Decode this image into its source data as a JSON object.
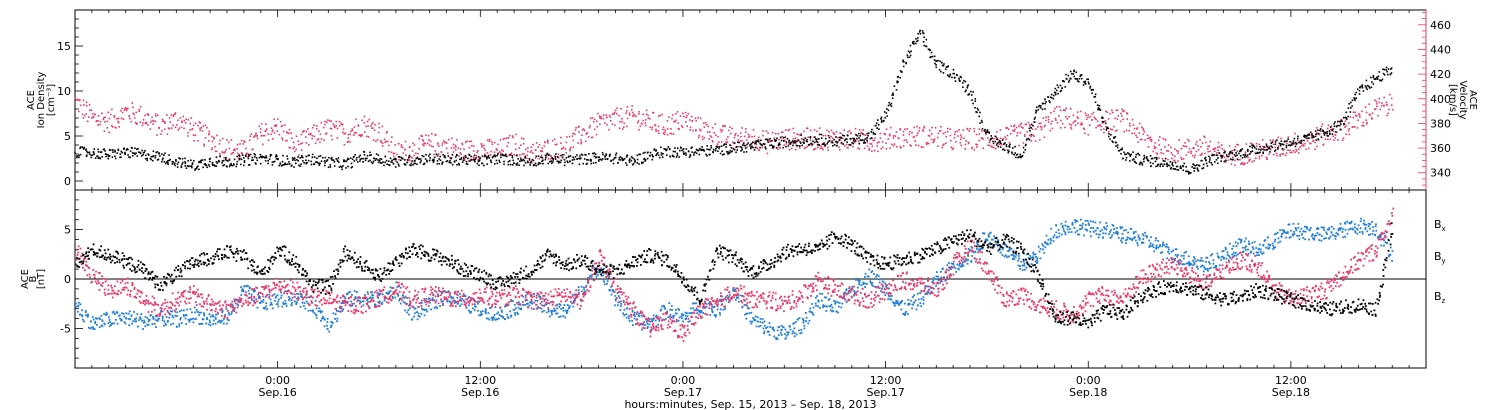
{
  "chart_data": [
    {
      "type": "scatter",
      "panel": "top",
      "ylabel_lines": [
        "ACE",
        "Ion Density",
        "[cm⁻³]"
      ],
      "ylim": [
        -1,
        19
      ],
      "yticks": [
        0,
        5,
        10,
        15
      ],
      "y2label_lines": [
        "ACE",
        "Velocity",
        "[km/s]"
      ],
      "y2lim": [
        326,
        472
      ],
      "y2ticks": [
        340,
        360,
        380,
        400,
        420,
        440,
        460
      ],
      "y2_color": "#e8396a",
      "series": [
        {
          "axis": "left",
          "color": "#000000",
          "x": [
            0,
            1,
            2,
            3,
            4,
            5,
            6,
            7,
            8,
            9,
            10,
            11,
            12,
            13,
            14,
            15,
            16,
            17,
            18,
            19,
            20,
            21,
            22,
            23,
            24,
            25,
            26,
            27,
            28,
            29,
            30,
            31,
            32,
            33,
            34,
            35,
            36,
            37,
            38,
            39,
            40,
            41,
            42,
            43,
            44,
            45,
            46,
            47,
            48,
            49,
            50,
            51,
            52,
            53,
            54,
            55,
            56,
            57,
            58,
            59,
            60,
            61,
            62,
            63,
            64,
            65,
            66,
            67,
            68,
            69,
            70,
            71,
            72,
            73,
            74,
            75,
            76,
            77,
            78
          ],
          "y": [
            3.3,
            3.2,
            3.0,
            3.3,
            3.0,
            2.8,
            2.2,
            1.8,
            2.3,
            2.2,
            2.4,
            2.6,
            2.4,
            2.2,
            2.5,
            2.2,
            1.9,
            2.8,
            2.5,
            2.2,
            2.4,
            2.6,
            2.4,
            2.5,
            2.3,
            2.6,
            2.4,
            2.3,
            2.6,
            2.4,
            2.5,
            2.7,
            2.6,
            2.3,
            3.0,
            3.4,
            3.3,
            3.4,
            3.5,
            3.8,
            3.9,
            4.2,
            4.4,
            4.6,
            4.7,
            4.5,
            4.7,
            5.0,
            7.5,
            13.0,
            16.5,
            13.0,
            12.0,
            10.0,
            5.0,
            4.0,
            3.0,
            8.0,
            10.0,
            12.0,
            11.0,
            6.0,
            3.0,
            2.5,
            2.2,
            2.0,
            1.3,
            2.3,
            2.8,
            3.2,
            3.6,
            4.0,
            4.4,
            4.8,
            5.5,
            6.5,
            10.0,
            11.5,
            12.5
          ],
          "point_size": 1.6
        },
        {
          "axis": "right",
          "color": "#e8396a",
          "x": [
            0,
            1,
            2,
            3,
            4,
            5,
            6,
            7,
            8,
            9,
            10,
            11,
            12,
            13,
            14,
            15,
            16,
            17,
            18,
            19,
            20,
            21,
            22,
            23,
            24,
            25,
            26,
            27,
            28,
            29,
            30,
            31,
            32,
            33,
            34,
            35,
            36,
            37,
            38,
            39,
            40,
            41,
            42,
            43,
            44,
            45,
            46,
            47,
            48,
            49,
            50,
            51,
            52,
            53,
            54,
            55,
            56,
            57,
            58,
            59,
            60,
            61,
            62,
            63,
            64,
            65,
            66,
            67,
            68,
            69,
            70,
            71,
            72,
            73,
            74,
            75,
            76,
            77,
            78
          ],
          "y": [
            398,
            385,
            382,
            390,
            386,
            378,
            384,
            375,
            368,
            360,
            358,
            372,
            378,
            362,
            370,
            376,
            372,
            380,
            374,
            356,
            360,
            364,
            362,
            358,
            360,
            358,
            364,
            356,
            360,
            362,
            372,
            380,
            384,
            386,
            382,
            378,
            384,
            376,
            372,
            368,
            370,
            365,
            368,
            368,
            368,
            368,
            368,
            366,
            368,
            370,
            370,
            370,
            367,
            368,
            368,
            368,
            372,
            374,
            386,
            384,
            380,
            382,
            384,
            372,
            362,
            358,
            360,
            362,
            354,
            356,
            358,
            360,
            364,
            366,
            372,
            376,
            384,
            392,
            396
          ],
          "y_extra": [
            [
              80,
              0,
              436
            ]
          ],
          "point_size": 1.6
        }
      ]
    },
    {
      "type": "scatter",
      "panel": "bottom",
      "ylabel_lines": [
        "ACE",
        "B",
        "[nT]"
      ],
      "ylim": [
        -9,
        9
      ],
      "yticks": [
        -5,
        0,
        5
      ],
      "zero_line": true,
      "series": [
        {
          "name": "B",
          "sub": "x",
          "color": "#000000",
          "x": [
            0,
            1,
            2,
            3,
            4,
            5,
            6,
            7,
            8,
            9,
            10,
            11,
            12,
            13,
            14,
            15,
            16,
            17,
            18,
            19,
            20,
            21,
            22,
            23,
            24,
            25,
            26,
            27,
            28,
            29,
            30,
            31,
            32,
            33,
            34,
            35,
            36,
            37,
            38,
            39,
            40,
            41,
            42,
            43,
            44,
            45,
            46,
            47,
            48,
            49,
            50,
            51,
            52,
            53,
            54,
            55,
            56,
            57,
            58,
            59,
            60,
            61,
            62,
            63,
            64,
            65,
            66,
            67,
            68,
            69,
            70,
            71,
            72,
            73,
            74,
            75,
            76,
            77,
            78
          ],
          "y": [
            1.5,
            3.0,
            2.5,
            1.8,
            1.0,
            -0.5,
            0.6,
            1.8,
            2.2,
            2.8,
            2.3,
            0.5,
            3.1,
            1.8,
            -0.5,
            -0.8,
            2.8,
            1.5,
            0.4,
            1.9,
            3.0,
            2.6,
            2.0,
            1.0,
            0.6,
            -0.5,
            0.2,
            1.0,
            2.5,
            1.5,
            2.0,
            1.0,
            0.8,
            1.8,
            2.5,
            2.0,
            0.2,
            -2.0,
            3.0,
            2.2,
            0.8,
            1.5,
            2.8,
            3.2,
            3.0,
            4.5,
            3.5,
            2.0,
            1.6,
            2.0,
            2.5,
            3.1,
            4.0,
            4.5,
            3.2,
            4.0,
            3.0,
            0.5,
            -4.0,
            -3.8,
            -4.5,
            -3.0,
            -3.5,
            -1.8,
            -1.0,
            -0.5,
            -1.0,
            -1.5,
            -2.0,
            -1.8,
            -1.0,
            -1.5,
            -2.0,
            -2.5,
            -3.0,
            -2.8,
            -2.5,
            -3.0,
            5.5
          ],
          "point_size": 1.8
        },
        {
          "name": "B",
          "sub": "y",
          "color": "#1f7fd8",
          "x": [
            0,
            1,
            2,
            3,
            4,
            5,
            6,
            7,
            8,
            9,
            10,
            11,
            12,
            13,
            14,
            15,
            16,
            17,
            18,
            19,
            20,
            21,
            22,
            23,
            24,
            25,
            26,
            27,
            28,
            29,
            30,
            31,
            32,
            33,
            34,
            35,
            36,
            37,
            38,
            39,
            40,
            41,
            42,
            43,
            44,
            45,
            46,
            47,
            48,
            49,
            50,
            51,
            52,
            53,
            54,
            55,
            56,
            57,
            58,
            59,
            60,
            61,
            62,
            63,
            64,
            65,
            66,
            67,
            68,
            69,
            70,
            71,
            72,
            73,
            74,
            75,
            76,
            77,
            78
          ],
          "y": [
            -2.5,
            -4.5,
            -4.0,
            -3.8,
            -4.2,
            -3.9,
            -4.0,
            -3.5,
            -4.1,
            -3.6,
            -1.0,
            -2.5,
            -2.0,
            -1.8,
            -2.5,
            -4.5,
            -2.0,
            -1.8,
            -2.0,
            -1.0,
            -3.5,
            -2.5,
            -1.5,
            -2.3,
            -3.0,
            -3.5,
            -2.8,
            -2.0,
            -3.0,
            -3.2,
            -1.0,
            1.5,
            -2.0,
            -4.0,
            -4.5,
            -3.0,
            -4.0,
            -2.5,
            -3.0,
            -1.0,
            -4.0,
            -5.0,
            -5.5,
            -4.5,
            -2.0,
            -3.0,
            -1.0,
            0.5,
            -1.0,
            -3.0,
            -2.0,
            0.0,
            1.5,
            2.5,
            4.5,
            3.0,
            1.5,
            2.5,
            5.0,
            5.5,
            5.2,
            5.0,
            4.5,
            4.2,
            3.5,
            2.5,
            2.0,
            1.5,
            2.5,
            3.5,
            3.0,
            4.0,
            5.0,
            4.8,
            4.5,
            5.0,
            5.5,
            5.2,
            2.5
          ],
          "point_size": 1.8
        },
        {
          "name": "B",
          "sub": "z",
          "color": "#e8396a",
          "x": [
            0,
            1,
            2,
            3,
            4,
            5,
            6,
            7,
            8,
            9,
            10,
            11,
            12,
            13,
            14,
            15,
            16,
            17,
            18,
            19,
            20,
            21,
            22,
            23,
            24,
            25,
            26,
            27,
            28,
            29,
            30,
            31,
            32,
            33,
            34,
            35,
            36,
            37,
            38,
            39,
            40,
            41,
            42,
            43,
            44,
            45,
            46,
            47,
            48,
            49,
            50,
            51,
            52,
            53,
            54,
            55,
            56,
            57,
            58,
            59,
            60,
            61,
            62,
            63,
            64,
            65,
            66,
            67,
            68,
            69,
            70,
            71,
            72,
            73,
            74,
            75,
            76,
            77,
            78
          ],
          "y": [
            3.0,
            0.5,
            -1.0,
            -0.5,
            -2.0,
            -3.0,
            -2.0,
            -1.5,
            -2.5,
            -3.0,
            -2.0,
            -1.5,
            -0.5,
            -1.0,
            -1.8,
            -2.0,
            -2.5,
            -2.5,
            -1.8,
            -1.0,
            -2.0,
            -1.5,
            -1.8,
            -2.0,
            -1.5,
            -2.0,
            -1.5,
            -2.0,
            -2.0,
            -1.5,
            -2.2,
            2.5,
            -1.0,
            -3.0,
            -5.0,
            -4.0,
            -5.5,
            -3.0,
            -2.5,
            -1.0,
            -2.0,
            -2.0,
            -2.5,
            -1.5,
            0.0,
            -1.0,
            -1.5,
            -2.0,
            -1.0,
            0.0,
            -0.5,
            -1.0,
            1.5,
            3.5,
            1.0,
            -2.0,
            -1.5,
            -2.5,
            -3.0,
            -3.5,
            -2.0,
            -1.5,
            -2.0,
            0.0,
            1.0,
            1.5,
            0.5,
            -0.5,
            1.0,
            2.0,
            1.5,
            -1.0,
            -2.0,
            -1.5,
            -1.0,
            0.5,
            2.0,
            3.0,
            6.5
          ],
          "point_size": 1.8
        }
      ],
      "legend_placement": "right"
    }
  ],
  "xaxis": {
    "xlim": [
      0,
      80
    ],
    "tick_labels": [
      {
        "x": 12,
        "time": "0:00",
        "date": "Sep.16"
      },
      {
        "x": 24,
        "time": "12:00",
        "date": "Sep.16"
      },
      {
        "x": 36,
        "time": "0:00",
        "date": "Sep.17"
      },
      {
        "x": 48,
        "time": "12:00",
        "date": "Sep.17"
      },
      {
        "x": 60,
        "time": "0:00",
        "date": "Sep.18"
      },
      {
        "x": 72,
        "time": "12:00",
        "date": "Sep.18"
      }
    ],
    "title": "hours:minutes, Sep. 15, 2013 – Sep. 18, 2013"
  },
  "legend": {
    "items": [
      {
        "label": "B",
        "sub": "x",
        "color": "#000000"
      },
      {
        "label": "B",
        "sub": "y",
        "color": "#1f7fd8"
      },
      {
        "label": "B",
        "sub": "z",
        "color": "#e8396a"
      }
    ]
  }
}
